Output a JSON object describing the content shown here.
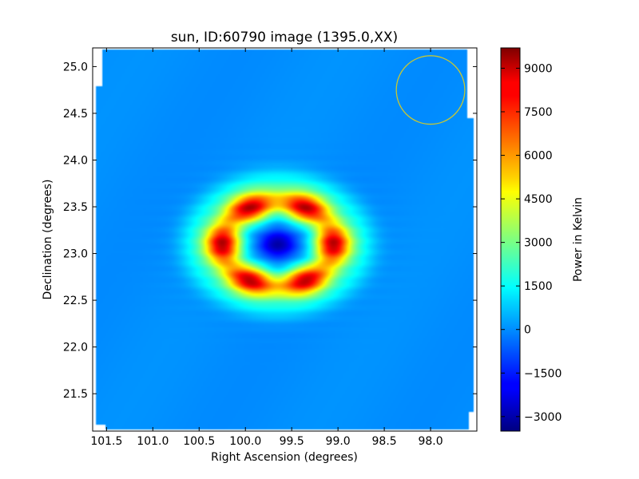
{
  "chart_data": {
    "type": "heatmap",
    "title": "sun, ID:60790 image (1395.0,XX)",
    "xlabel": "Right Ascension (degrees)",
    "ylabel": "Declination (degrees)",
    "xlim": [
      101.65,
      97.5
    ],
    "ylim": [
      21.1,
      25.2
    ],
    "x_ticks": [
      101.5,
      101.0,
      100.5,
      100.0,
      99.5,
      99.0,
      98.5,
      98.0
    ],
    "x_tick_labels": [
      "101.5",
      "101.0",
      "100.5",
      "100.0",
      "99.5",
      "99.0",
      "98.5",
      "98.0"
    ],
    "y_ticks": [
      21.5,
      22.0,
      22.5,
      23.0,
      23.5,
      24.0,
      24.5,
      25.0
    ],
    "y_tick_labels": [
      "21.5",
      "22.0",
      "22.5",
      "23.0",
      "23.5",
      "24.0",
      "24.5",
      "25.0"
    ],
    "colormap": "jet",
    "colorbar": {
      "label": "Power in Kelvin",
      "range": [
        -3500,
        9700
      ],
      "ticks": [
        -3000,
        -1500,
        0,
        1500,
        3000,
        4500,
        6000,
        7500,
        9000
      ],
      "tick_labels": [
        "−3000",
        "−1500",
        "0",
        "1500",
        "3000",
        "4500",
        "6000",
        "7500",
        "9000"
      ]
    },
    "background_level": 0,
    "source": {
      "center_ra": 99.65,
      "center_dec": 23.1,
      "ring_radius_ra": 0.6,
      "ring_radius_dec": 0.45,
      "ring_peak": 9000,
      "center_min": -3000
    },
    "beam_circle": {
      "ra": 98.0,
      "dec": 24.75,
      "radius_deg": 0.37,
      "color": "#c8c832"
    },
    "grid": false
  }
}
